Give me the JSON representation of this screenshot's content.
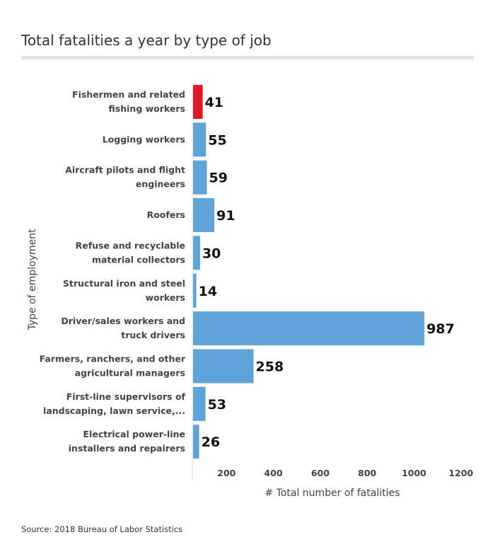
{
  "chart_data": {
    "type": "bar",
    "orientation": "horizontal",
    "title": "Total fatalities a year by type of job",
    "xlabel": "# Total number of fatalities",
    "ylabel": "Type of employment",
    "xlim": [
      0,
      1200
    ],
    "xticks": [
      200,
      400,
      600,
      800,
      1000,
      1200
    ],
    "grid": false,
    "categories": [
      [
        "Fishermen and related",
        "fishing workers"
      ],
      [
        "Logging workers"
      ],
      [
        "Aircraft pilots and flight",
        "engineers"
      ],
      [
        "Roofers"
      ],
      [
        "Refuse and recyclable",
        "material collectors"
      ],
      [
        "Structural iron and steel",
        "workers"
      ],
      [
        "Driver/sales workers and",
        "truck drivers"
      ],
      [
        "Farmers, ranchers, and other",
        "agricultural managers"
      ],
      [
        "First-line supervisors of",
        "landscaping, lawn service,..."
      ],
      [
        "Electrical power-line",
        "installers and repairers"
      ]
    ],
    "values": [
      41,
      55,
      59,
      91,
      30,
      14,
      987,
      258,
      53,
      26
    ],
    "colors": [
      "#e0162b",
      "#5fa4d9",
      "#5fa4d9",
      "#5fa4d9",
      "#5fa4d9",
      "#5fa4d9",
      "#5fa4d9",
      "#5fa4d9",
      "#5fa4d9",
      "#5fa4d9"
    ],
    "source": "Source: 2018 Bureau of Labor Statistics"
  }
}
